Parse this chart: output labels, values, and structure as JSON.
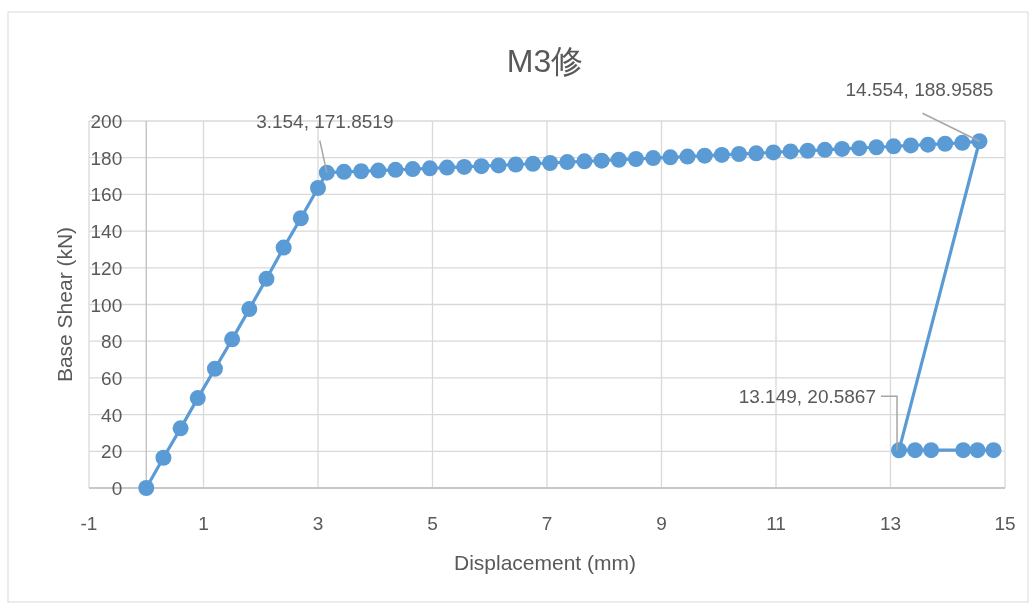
{
  "chart_data": {
    "type": "line",
    "title": "M3修",
    "xlabel": "Displacement (mm)",
    "ylabel": "Base Shear (kN)",
    "x": [
      0,
      0.3,
      0.6,
      0.9,
      1.2,
      1.5,
      1.8,
      2.1,
      2.4,
      2.7,
      3.0,
      3.154,
      3.454,
      3.754,
      4.054,
      4.354,
      4.654,
      4.954,
      5.254,
      5.554,
      5.854,
      6.154,
      6.454,
      6.754,
      7.054,
      7.354,
      7.654,
      7.954,
      8.254,
      8.554,
      8.854,
      9.154,
      9.454,
      9.754,
      10.054,
      10.354,
      10.654,
      10.954,
      11.254,
      11.554,
      11.854,
      12.154,
      12.454,
      12.754,
      13.054,
      13.354,
      13.654,
      13.954,
      14.254,
      14.554,
      13.149,
      13.43,
      13.71,
      14.27,
      14.52,
      14.8
    ],
    "series": [
      {
        "color": "#5b9bd5",
        "values": [
          0,
          16.5,
          32.5,
          49,
          65,
          81,
          97.5,
          114,
          131,
          147,
          163.5,
          171.8519,
          172.3,
          172.6,
          173.0,
          173.4,
          173.8,
          174.2,
          174.6,
          175.0,
          175.4,
          175.8,
          176.3,
          176.7,
          177.1,
          177.6,
          178.0,
          178.4,
          178.9,
          179.3,
          179.8,
          180.2,
          180.6,
          181.1,
          181.5,
          182.0,
          182.4,
          182.9,
          183.4,
          183.8,
          184.3,
          184.8,
          185.2,
          185.7,
          186.2,
          186.7,
          187.1,
          187.6,
          188.1,
          188.9585,
          20.5867,
          20.6,
          20.6,
          20.6,
          20.6,
          20.6
        ]
      }
    ],
    "line_style": "solid",
    "marker": "circle",
    "grid": true,
    "xlim": [
      -1,
      15
    ],
    "xticks": [
      -1,
      1,
      3,
      5,
      7,
      9,
      11,
      13,
      15
    ],
    "ylim": [
      0,
      200
    ],
    "yticks": [
      0,
      20,
      40,
      60,
      80,
      100,
      120,
      140,
      160,
      180,
      200
    ],
    "annotations": [
      {
        "text": "3.154, 171.8519",
        "x": 3.154,
        "y": 171.8519
      },
      {
        "text": "14.554, 188.9585",
        "x": 14.554,
        "y": 188.9585
      },
      {
        "text": "13.149, 20.5867",
        "x": 13.149,
        "y": 20.5867
      }
    ]
  }
}
